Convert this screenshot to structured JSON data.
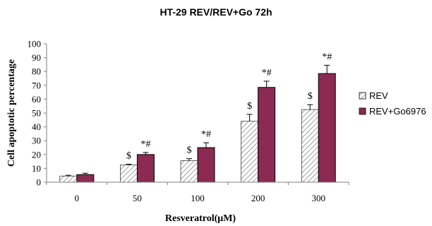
{
  "chart_data": {
    "type": "bar",
    "title": "HT-29 REV/REV+Go 72h",
    "xlabel": "Resveratrol(μM)",
    "ylabel": "Cell apoptotic percentage",
    "categories": [
      "0",
      "50",
      "100",
      "200",
      "300"
    ],
    "ylim": [
      0,
      100
    ],
    "yticks": [
      0,
      10,
      20,
      30,
      40,
      50,
      60,
      70,
      80,
      90,
      100
    ],
    "grid": false,
    "legend_position": "right",
    "series": [
      {
        "name": "REV",
        "values": [
          4.5,
          12.5,
          15.5,
          44,
          52.5
        ],
        "errors": [
          0.5,
          0.5,
          1.5,
          5,
          3.5
        ],
        "annotations": [
          "",
          "$",
          "$",
          "$",
          "$"
        ],
        "color": "#d9d9d9",
        "pattern": "diagonal-hatch"
      },
      {
        "name": "REV+Go6976",
        "values": [
          5.5,
          20,
          25,
          68.5,
          78.5
        ],
        "errors": [
          1,
          1.5,
          3.5,
          4.5,
          6
        ],
        "annotations": [
          "",
          "*#",
          "*#",
          "*#",
          "*#"
        ],
        "color": "#8b2a52",
        "pattern": "solid"
      }
    ]
  }
}
